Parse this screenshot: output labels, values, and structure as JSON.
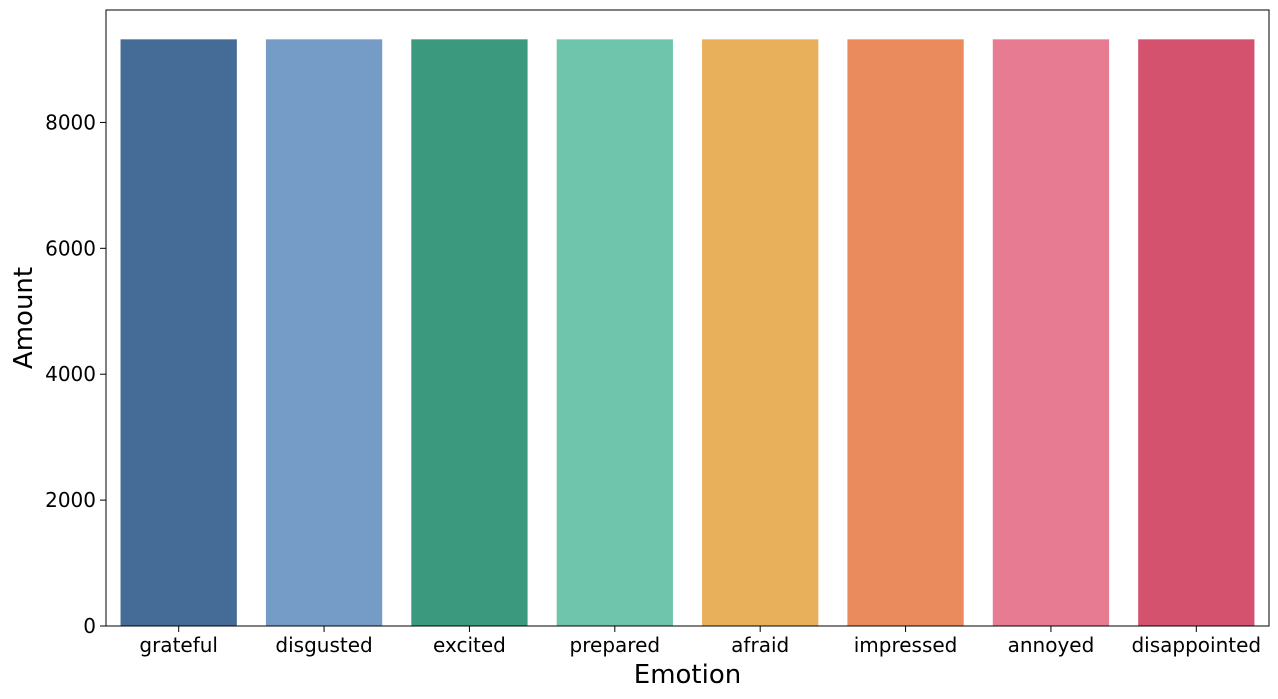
{
  "chart_data": {
    "type": "bar",
    "title": "",
    "xlabel": "Emotion",
    "ylabel": "Amount",
    "categories": [
      "grateful",
      "disgusted",
      "excited",
      "prepared",
      "afraid",
      "impressed",
      "annoyed",
      "disappointed"
    ],
    "values": [
      9320,
      9320,
      9320,
      9320,
      9320,
      9320,
      9320,
      9320
    ],
    "colors": [
      "#446c97",
      "#759bc7",
      "#3b997d",
      "#6ec5ab",
      "#e8b05a",
      "#e98b5c",
      "#e67b92",
      "#d5526f"
    ],
    "ylim": [
      0,
      9786
    ],
    "yticks": [
      0,
      2000,
      4000,
      6000,
      8000
    ],
    "grid": false,
    "legend": "none"
  }
}
